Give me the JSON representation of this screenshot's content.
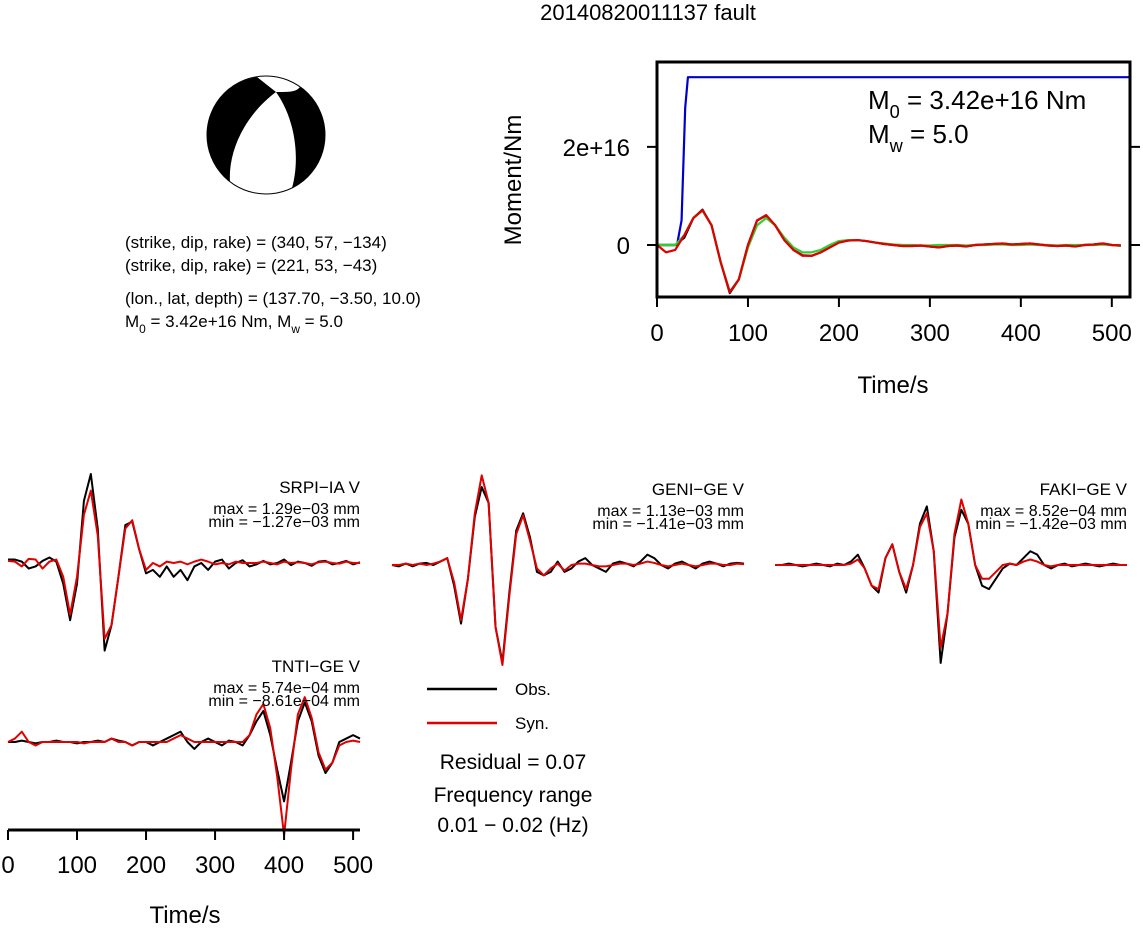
{
  "title": "20140820011137 fault",
  "mechanism": {
    "lines": [
      "(strike, dip, rake) = (340, 57, −134)",
      "(strike, dip, rake) = (221, 53, −43)",
      "(lon., lat, depth) = (137.70, −3.50, 10.0)"
    ],
    "moment": [
      "M",
      "0",
      " = 3.42e+16 Nm, M",
      "w",
      " = 5.0"
    ]
  },
  "legend": [
    {
      "name": "Obs.",
      "color": "#000000"
    },
    {
      "name": "Syn.",
      "color": "#e00000"
    }
  ],
  "notes": {
    "residual": "Residual = 0.07",
    "frequency": [
      "Frequency range",
      "0.01 − 0.02 (Hz)"
    ]
  },
  "chart_data": [
    {
      "type": "line",
      "xlabel": "Time/s",
      "ylabel": "Moment/Nm",
      "annotation": [
        [
          "M",
          "0",
          " = 3.42e+16 Nm"
        ],
        [
          "M",
          "w",
          " = 5.0"
        ]
      ],
      "xlim": [
        0,
        520
      ],
      "ylim": [
        -1.06e+16,
        3.73e+16
      ],
      "xticks": [
        0,
        100,
        200,
        300,
        400,
        500
      ],
      "yticks": [
        0,
        {
          "value": 2e+16,
          "label": "2e+16"
        }
      ],
      "x": [
        0,
        10,
        20,
        30,
        40,
        50,
        60,
        70,
        80,
        90,
        100,
        110,
        120,
        130,
        140,
        150,
        160,
        170,
        180,
        190,
        200,
        210,
        220,
        230,
        240,
        250,
        260,
        270,
        280,
        290,
        300,
        310,
        320,
        330,
        340,
        350,
        360,
        370,
        380,
        390,
        400,
        410,
        420,
        430,
        440,
        450,
        460,
        470,
        480,
        490,
        500,
        510
      ],
      "series": [
        {
          "color": "#0000cc",
          "x": [
            0,
            22,
            27,
            31,
            34,
            520
          ],
          "values": [
            0,
            0,
            5000000000000000.0,
            2.8e+16,
            3.42e+16,
            3.42e+16
          ]
        },
        {
          "color": "#000000",
          "values": [
            0,
            0,
            0,
            1500000000000000.0,
            5500000000000000.0,
            7200000000000000.0,
            4000000000000000.0,
            -3500000000000000.0,
            -9800000000000000.0,
            -7000000000000000.0,
            0,
            5000000000000000.0,
            6000000000000000.0,
            4000000000000000.0,
            1000000000000000.0,
            -1000000000000000.0,
            -2100000000000000.0,
            -2200000000000000.0,
            -1500000000000000.0,
            -500000000000000.0,
            500000000000000.0,
            900000000000000.0,
            1000000000000000.0,
            800000000000000.0,
            500000000000000.0,
            200000000000000.0,
            0,
            -200000000000000.0,
            -200000000000000.0,
            -100000000000000.0,
            -300000000000000.0,
            -500000000000000.0,
            -200000000000000.0,
            -100000000000000.0,
            -300000000000000.0,
            0,
            100000000000000.0,
            200000000000000.0,
            300000000000000.0,
            100000000000000.0,
            200000000000000.0,
            300000000000000.0,
            100000000000000.0,
            -100000000000000.0,
            -200000000000000.0,
            -100000000000000.0,
            -300000000000000.0,
            0,
            100000000000000.0,
            300000000000000.0,
            0,
            -100000000000000.0
          ]
        },
        {
          "color": "#33cc33",
          "values": [
            0,
            0,
            0,
            2000000000000000.0,
            5500000000000000.0,
            7000000000000000.0,
            4000000000000000.0,
            -3500000000000000.0,
            -9500000000000000.0,
            -7000000000000000.0,
            -500000000000000.0,
            4000000000000000.0,
            5500000000000000.0,
            4000000000000000.0,
            1500000000000000.0,
            -500000000000000.0,
            -1500000000000000.0,
            -1500000000000000.0,
            -1000000000000000.0,
            0,
            800000000000000.0,
            1000000000000000.0,
            1000000000000000.0,
            800000000000000.0,
            500000000000000.0,
            300000000000000.0,
            100000000000000.0,
            0,
            0,
            -100000000000000.0,
            -100000000000000.0,
            0,
            0,
            0,
            -100000000000000.0,
            0,
            0,
            100000000000000.0,
            100000000000000.0,
            0,
            0,
            100000000000000.0,
            0,
            0,
            -100000000000000.0,
            0,
            0,
            0,
            0,
            100000000000000.0,
            0,
            -200000000000000.0
          ]
        },
        {
          "color": "#e00000",
          "values": [
            0,
            -1500000000000000.0,
            -1000000000000000.0,
            2000000000000000.0,
            5500000000000000.0,
            7100000000000000.0,
            4000000000000000.0,
            -3500000000000000.0,
            -9600000000000000.0,
            -7000000000000000.0,
            0,
            5000000000000000.0,
            6100000000000000.0,
            4000000000000000.0,
            1000000000000000.0,
            -1000000000000000.0,
            -2200000000000000.0,
            -2200000000000000.0,
            -1500000000000000.0,
            -500000000000000.0,
            500000000000000.0,
            900000000000000.0,
            1000000000000000.0,
            800000000000000.0,
            500000000000000.0,
            200000000000000.0,
            0,
            -200000000000000.0,
            -200000000000000.0,
            -100000000000000.0,
            -300000000000000.0,
            -500000000000000.0,
            -200000000000000.0,
            -100000000000000.0,
            -300000000000000.0,
            0,
            100000000000000.0,
            200000000000000.0,
            300000000000000.0,
            100000000000000.0,
            200000000000000.0,
            300000000000000.0,
            100000000000000.0,
            -100000000000000.0,
            -200000000000000.0,
            -100000000000000.0,
            -300000000000000.0,
            0,
            100000000000000.0,
            300000000000000.0,
            0,
            -100000000000000.0
          ]
        }
      ]
    },
    {
      "type": "waveform",
      "station": "SRPI−IA V",
      "max": "max = 1.29e−03 mm",
      "min": "min = −1.27e−03 mm",
      "xlim": [
        0,
        510
      ],
      "ylim": [
        -0.00145,
        0.00145
      ],
      "x": [
        0,
        10,
        20,
        30,
        40,
        50,
        60,
        70,
        80,
        90,
        100,
        110,
        120,
        130,
        140,
        150,
        160,
        170,
        180,
        190,
        200,
        210,
        220,
        230,
        240,
        250,
        260,
        270,
        280,
        290,
        300,
        310,
        320,
        330,
        340,
        350,
        360,
        370,
        380,
        390,
        400,
        410,
        420,
        430,
        440,
        450,
        460,
        470,
        480,
        490,
        500,
        510
      ],
      "series": [
        {
          "color": "#000000",
          "values": [
            5e-05,
            5e-05,
            2e-05,
            -8e-05,
            -5e-05,
            3e-05,
            8e-05,
            2e-05,
            -0.0003,
            -0.00083,
            -0.0003,
            0.0009,
            0.00129,
            0.0005,
            -0.00127,
            -0.0009,
            -0.0002,
            0.00055,
            0.0006,
            0.0002,
            -0.00015,
            -0.0001,
            -0.0002,
            -5e-05,
            -0.0002,
            -0.0001,
            -0.00025,
            -5e-05,
            0,
            -0.0001,
            2e-05,
            5e-05,
            -8e-05,
            0,
            4e-05,
            -5e-05,
            -2e-05,
            3e-05,
            -2e-05,
            0,
            5e-05,
            -3e-05,
            2e-05,
            0,
            -4e-05,
            2e-05,
            3e-05,
            -2e-05,
            0,
            3e-05,
            -2e-05,
            1e-05
          ]
        },
        {
          "color": "#e00000",
          "values": [
            3e-05,
            2e-05,
            -5e-05,
            6e-05,
            5e-05,
            -8e-05,
            2e-05,
            5e-05,
            -0.0002,
            -0.00075,
            -0.0002,
            0.0007,
            0.00105,
            0.0004,
            -0.0011,
            -0.0009,
            -0.0002,
            0.0005,
            0.00062,
            0.0002,
            -0.0001,
            0,
            -5e-05,
            2e-05,
            0,
            2e-05,
            -2e-05,
            2e-05,
            5e-05,
            2e-05,
            -2e-05,
            0,
            -2e-05,
            2e-05,
            0,
            0,
            0,
            2e-05,
            0,
            -2e-05,
            2e-05,
            0,
            1e-05,
            0,
            -2e-05,
            1e-05,
            2e-05,
            0,
            -1e-05,
            2e-05,
            0,
            0
          ]
        }
      ]
    },
    {
      "type": "waveform",
      "station": "GENI−GE V",
      "max": "max = 1.13e−03 mm",
      "min": "min = −1.41e−03 mm",
      "xlim": [
        0,
        510
      ],
      "ylim": [
        -0.00145,
        0.00145
      ],
      "x": [
        0,
        10,
        20,
        30,
        40,
        50,
        60,
        70,
        80,
        90,
        100,
        110,
        120,
        130,
        140,
        150,
        160,
        170,
        180,
        190,
        200,
        210,
        220,
        230,
        240,
        250,
        260,
        270,
        280,
        290,
        300,
        310,
        320,
        330,
        340,
        350,
        360,
        370,
        380,
        390,
        400,
        410,
        420,
        430,
        440,
        450,
        460,
        470,
        480,
        490,
        500,
        510
      ],
      "series": [
        {
          "color": "#000000",
          "values": [
            0,
            -2e-05,
            2e-05,
            -2e-05,
            2e-05,
            3e-05,
            0,
            5e-05,
            0.0001,
            -0.0003,
            -0.00085,
            -0.0002,
            0.0007,
            0.00113,
            0.0009,
            -0.0009,
            -0.00141,
            -0.0004,
            0.0005,
            0.00075,
            0.0004,
            -0.0001,
            -0.00015,
            -0.0001,
            5e-05,
            -0.0001,
            -5e-05,
            5e-05,
            0.0001,
            0,
            -5e-05,
            -0.0001,
            2e-05,
            5e-05,
            2e-05,
            -2e-05,
            5e-05,
            0.00015,
            0.0001,
            0,
            -5e-05,
            2e-05,
            5e-05,
            0,
            -5e-05,
            2e-05,
            5e-05,
            2e-05,
            -2e-05,
            2e-05,
            3e-05,
            2e-05
          ]
        },
        {
          "color": "#e00000",
          "values": [
            0,
            0,
            2e-05,
            0,
            2e-05,
            0,
            2e-05,
            5e-05,
            0.0001,
            -0.00025,
            -0.0008,
            -0.0002,
            0.00075,
            0.0013,
            0.0009,
            -0.0009,
            -0.00145,
            -0.00045,
            0.00045,
            0.00072,
            0.00035,
            -5e-05,
            -0.00015,
            -5e-05,
            2e-05,
            -8e-05,
            0,
            2e-05,
            2e-05,
            0,
            -2e-05,
            -2e-05,
            0,
            2e-05,
            2e-05,
            0,
            2e-05,
            5e-05,
            3e-05,
            0,
            -2e-05,
            0,
            2e-05,
            0,
            -2e-05,
            0,
            2e-05,
            2e-05,
            0,
            0,
            2e-05,
            1e-05
          ]
        }
      ]
    },
    {
      "type": "waveform",
      "station": "FAKI−GE V",
      "max": "max = 8.52e−04 mm",
      "min": "min = −1.42e−03 mm",
      "xlim": [
        0,
        510
      ],
      "ylim": [
        -0.00145,
        0.00145
      ],
      "x": [
        0,
        10,
        20,
        30,
        40,
        50,
        60,
        70,
        80,
        90,
        100,
        110,
        120,
        130,
        140,
        150,
        160,
        170,
        180,
        190,
        200,
        210,
        220,
        230,
        240,
        250,
        260,
        270,
        280,
        290,
        300,
        310,
        320,
        330,
        340,
        350,
        360,
        370,
        380,
        390,
        400,
        410,
        420,
        430,
        440,
        450,
        460,
        470,
        480,
        490,
        500,
        510
      ],
      "series": [
        {
          "color": "#000000",
          "values": [
            0,
            0,
            2e-05,
            0,
            -2e-05,
            0,
            2e-05,
            0,
            -2e-05,
            2e-05,
            0,
            5e-05,
            0.00015,
            -5e-05,
            -0.0003,
            -0.0004,
            0.0001,
            0.0003,
            -0.0001,
            -0.0004,
            0,
            0.0006,
            0.00085,
            0.0002,
            -0.00142,
            -0.0007,
            0.0004,
            0.0008,
            0.0006,
            0,
            -0.0003,
            -0.00035,
            -0.0002,
            -5e-05,
            2e-05,
            0,
            0.0001,
            0.0002,
            0.00015,
            0,
            -5e-05,
            0,
            2e-05,
            -2e-05,
            0,
            2e-05,
            0,
            -2e-05,
            0,
            2e-05,
            0,
            0
          ]
        },
        {
          "color": "#e00000",
          "values": [
            0,
            0,
            0,
            0,
            0,
            0,
            0,
            0,
            0,
            0,
            0,
            2e-05,
            8e-05,
            -5e-05,
            -0.0003,
            -0.00035,
            0.0001,
            0.0003,
            -0.0001,
            -0.00035,
            0,
            0.00055,
            0.00075,
            0.0002,
            -0.0012,
            -0.0007,
            0.00045,
            0.00095,
            0.0006,
            0,
            -0.0002,
            -0.0002,
            -0.0001,
            0,
            2e-05,
            0,
            5e-05,
            8e-05,
            5e-05,
            0,
            -2e-05,
            0,
            0,
            0,
            0,
            0,
            0,
            0,
            0,
            0,
            0,
            0
          ]
        }
      ]
    },
    {
      "type": "waveform",
      "station": "TNTI−GE V",
      "max": "max = 5.74e−04 mm",
      "min": "min = −8.61e−04 mm",
      "xlabel": "Time/s",
      "xlim": [
        0,
        510
      ],
      "ylim": [
        -0.00145,
        0.00145
      ],
      "xticks": [
        0,
        100,
        200,
        300,
        400,
        500
      ],
      "x": [
        0,
        10,
        20,
        30,
        40,
        50,
        60,
        70,
        80,
        90,
        100,
        110,
        120,
        130,
        140,
        150,
        160,
        170,
        180,
        190,
        200,
        210,
        220,
        230,
        240,
        250,
        260,
        270,
        280,
        290,
        300,
        310,
        320,
        330,
        340,
        350,
        360,
        370,
        380,
        390,
        400,
        410,
        420,
        430,
        440,
        450,
        460,
        470,
        480,
        490,
        500,
        510
      ],
      "series": [
        {
          "color": "#000000",
          "values": [
            0,
            0,
            2e-05,
            0,
            -2e-05,
            0,
            0,
            2e-05,
            0,
            0,
            -2e-05,
            0,
            0,
            2e-05,
            0,
            5e-05,
            2e-05,
            0,
            -5e-05,
            0,
            0,
            -5e-05,
            0,
            5e-05,
            0.0001,
            0.00015,
            0,
            -0.0001,
            0,
            5e-05,
            0,
            -5e-05,
            2e-05,
            0,
            -5e-05,
            0.0001,
            0.0003,
            0.00045,
            0.0001,
            -0.0004,
            -0.000861,
            -0.0003,
            0.0003,
            0.000574,
            0.0003,
            -0.0002,
            -0.00045,
            -0.0003,
            0,
            5e-05,
            0.0001,
            5e-05
          ]
        },
        {
          "color": "#e00000",
          "values": [
            0,
            5e-05,
            0.00015,
            0,
            -5e-05,
            0,
            0,
            0,
            0,
            0,
            0,
            -2e-05,
            0,
            0,
            0,
            5e-05,
            0,
            0,
            -5e-05,
            0,
            0,
            0,
            0,
            0,
            5e-05,
            0.0001,
            5e-05,
            0,
            0,
            0,
            0,
            0,
            0,
            0,
            0,
            0.0001,
            0.0004,
            0.00055,
            0.0002,
            -0.0005,
            -0.00135,
            -0.0004,
            0.0004,
            0.00065,
            0.00035,
            -0.00015,
            -0.0004,
            -0.0003,
            -5e-05,
            0,
            2e-05,
            0
          ]
        }
      ]
    }
  ]
}
